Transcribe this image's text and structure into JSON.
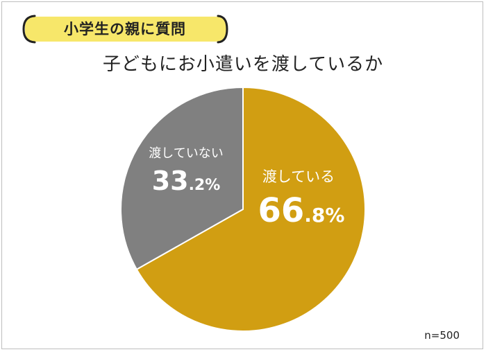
{
  "header": {
    "tag": "小学生の親に質問",
    "tag_color": "#f7e76a"
  },
  "chart_data": {
    "type": "pie",
    "title": "子どもにお小遣いを渡しているか",
    "slices": [
      {
        "label": "渡している",
        "value": 66.8,
        "int": "66",
        "dec": ".8%",
        "color": "#d19e12"
      },
      {
        "label": "渡していない",
        "value": 33.2,
        "int": "33",
        "dec": ".2%",
        "color": "#808080"
      }
    ],
    "start_angle_deg": 0,
    "direction": "clockwise"
  },
  "footer": {
    "n": "n=500"
  }
}
